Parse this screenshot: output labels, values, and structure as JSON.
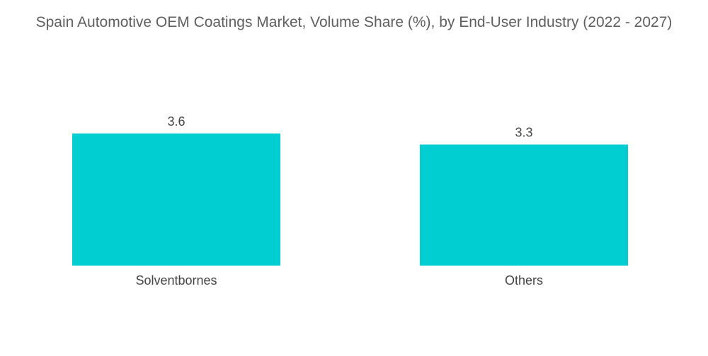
{
  "chart_data": {
    "type": "bar",
    "title": "Spain Automotive OEM Coatings Market, Volume Share (%), by End-User Industry (2022 - 2027)",
    "categories": [
      "Solventbornes",
      "Others"
    ],
    "values": [
      3.6,
      3.3
    ],
    "value_labels": [
      "3.6",
      "3.3"
    ],
    "xlabel": "",
    "ylabel": "",
    "ylim": [
      0,
      3.6
    ],
    "grid": false,
    "legend": "none",
    "bar_color": "#00CED1"
  }
}
